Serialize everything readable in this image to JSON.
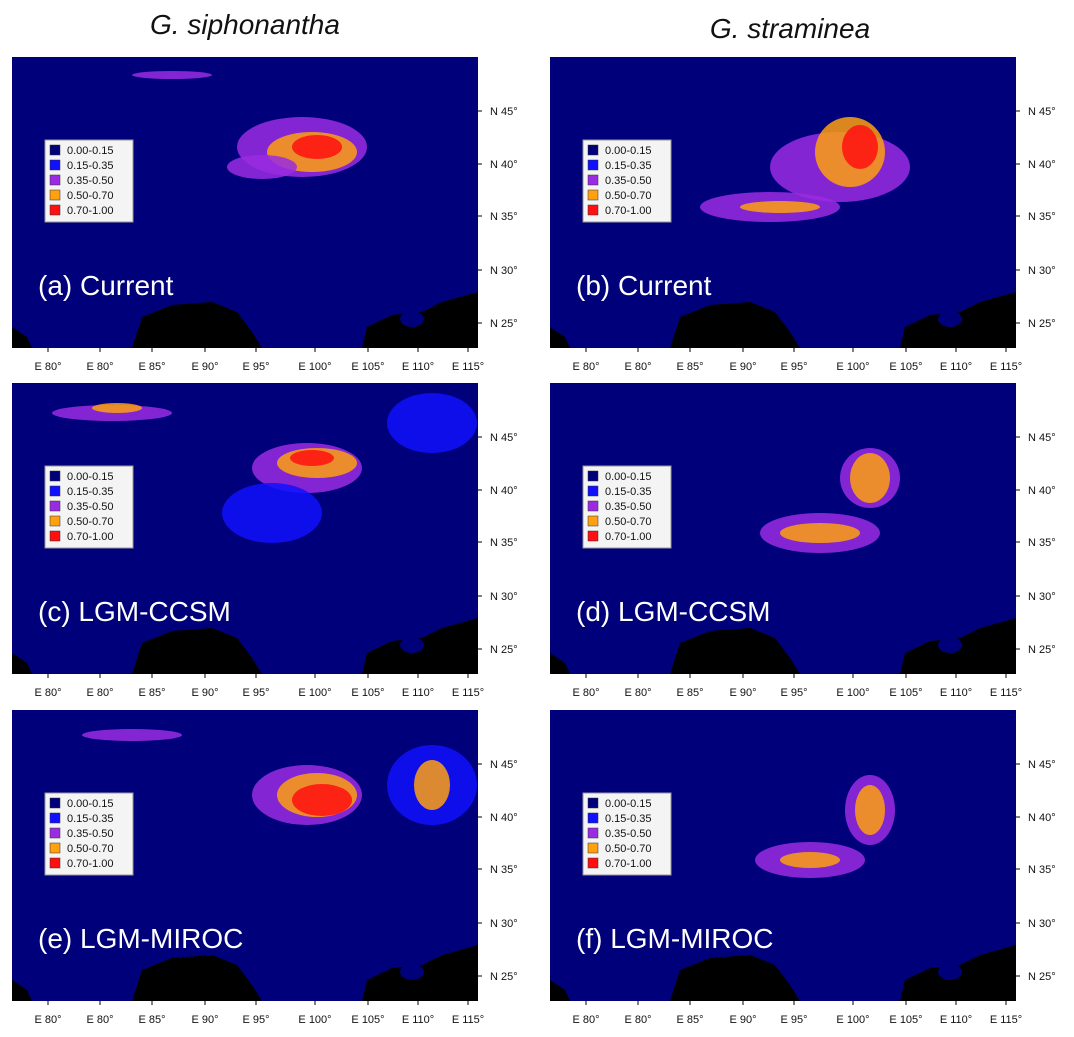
{
  "columns": [
    "G. siphonantha",
    "G. straminea"
  ],
  "panels": [
    {
      "label": "(a) Current"
    },
    {
      "label": "(b) Current"
    },
    {
      "label": "(c) LGM-CCSM"
    },
    {
      "label": "(d) LGM-CCSM"
    },
    {
      "label": "(e) LGM-MIROC"
    },
    {
      "label": "(f) LGM-MIROC"
    }
  ],
  "legend": [
    {
      "label": "0.00-0.15",
      "color": "#00007a"
    },
    {
      "label": "0.15-0.35",
      "color": "#1010ff"
    },
    {
      "label": "0.35-0.50",
      "color": "#9a2be2"
    },
    {
      "label": "0.50-0.70",
      "color": "#ffa010"
    },
    {
      "label": "0.70-1.00",
      "color": "#ff1010"
    }
  ],
  "x_ticks": [
    "E 80°",
    "E 80°",
    "E 85°",
    "E 90°",
    "E 95°",
    "E 100°",
    "E 105°",
    "E 110°",
    "E 115°"
  ],
  "y_ticks": [
    "N 45°",
    "N 40°",
    "N 35°",
    "N 30°",
    "N 25°"
  ]
}
